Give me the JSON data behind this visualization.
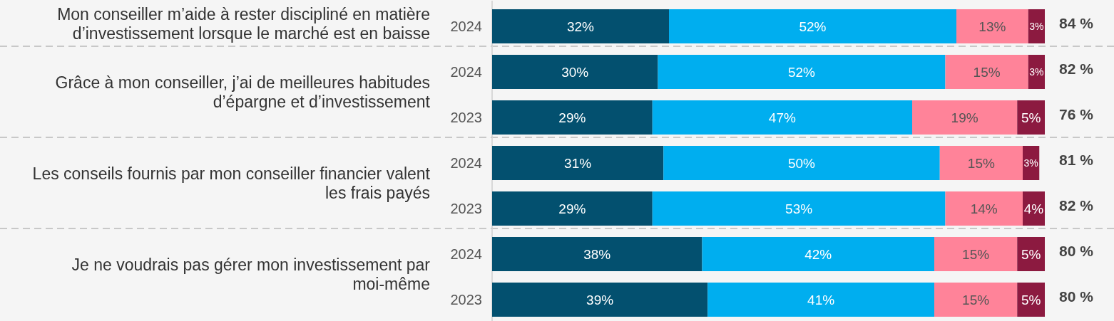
{
  "chart_data": [
    {
      "type": "bar",
      "orientation": "horizontal",
      "stacked": true,
      "title": "Mon conseiller m’aide à rester discipliné en matière d’investissement lorsque le marché est en baisse",
      "categories": [
        "2024"
      ],
      "xlim": [
        0,
        100
      ],
      "tick_labels": "y",
      "annotations": [
        "84 %"
      ],
      "series": [
        {
          "color": "#03506f",
          "values": [
            32
          ],
          "value_labels": [
            "32%"
          ]
        },
        {
          "color": "#00aeef",
          "values": [
            52
          ],
          "value_labels": [
            "52%"
          ]
        },
        {
          "color": "#ff8399",
          "values": [
            13
          ],
          "value_labels": [
            "13%"
          ]
        },
        {
          "color": "#8c1a40",
          "values": [
            3
          ],
          "value_labels": [
            "3%"
          ]
        }
      ]
    },
    {
      "type": "bar",
      "orientation": "horizontal",
      "stacked": true,
      "title": "Grâce à mon conseiller, j’ai de meilleures habitudes d’épargne et d’investissement",
      "categories": [
        "2024",
        "2023"
      ],
      "xlim": [
        0,
        100
      ],
      "tick_labels": "y",
      "annotations": [
        "82 %",
        "76 %"
      ],
      "series": [
        {
          "color": "#03506f",
          "values": [
            30,
            29
          ],
          "value_labels": [
            "30%",
            "29%"
          ]
        },
        {
          "color": "#00aeef",
          "values": [
            52,
            47
          ],
          "value_labels": [
            "52%",
            "47%"
          ]
        },
        {
          "color": "#ff8399",
          "values": [
            15,
            19
          ],
          "value_labels": [
            "15%",
            "19%"
          ]
        },
        {
          "color": "#8c1a40",
          "values": [
            3,
            5
          ],
          "value_labels": [
            "3%",
            "5%"
          ]
        }
      ]
    },
    {
      "type": "bar",
      "orientation": "horizontal",
      "stacked": true,
      "title": "Les conseils fournis par mon conseiller financier valent les frais payés",
      "categories": [
        "2024",
        "2023"
      ],
      "xlim": [
        0,
        100
      ],
      "tick_labels": "y",
      "annotations": [
        "81 %",
        "82 %"
      ],
      "series": [
        {
          "color": "#03506f",
          "values": [
            31,
            29
          ],
          "value_labels": [
            "31%",
            "29%"
          ]
        },
        {
          "color": "#00aeef",
          "values": [
            50,
            53
          ],
          "value_labels": [
            "50%",
            "53%"
          ]
        },
        {
          "color": "#ff8399",
          "values": [
            15,
            14
          ],
          "value_labels": [
            "15%",
            "14%"
          ]
        },
        {
          "color": "#8c1a40",
          "values": [
            3,
            4
          ],
          "value_labels": [
            "3%",
            "4%"
          ]
        }
      ]
    },
    {
      "type": "bar",
      "orientation": "horizontal",
      "stacked": true,
      "title": "Je ne voudrais pas gérer mon investissement par moi-même",
      "categories": [
        "2024",
        "2023"
      ],
      "xlim": [
        0,
        100
      ],
      "tick_labels": "y",
      "annotations": [
        "80 %",
        "80 %"
      ],
      "series": [
        {
          "color": "#03506f",
          "values": [
            38,
            39
          ],
          "value_labels": [
            "38%",
            "39%"
          ]
        },
        {
          "color": "#00aeef",
          "values": [
            42,
            41
          ],
          "value_labels": [
            "42%",
            "41%"
          ]
        },
        {
          "color": "#ff8399",
          "values": [
            15,
            15
          ],
          "value_labels": [
            "15%",
            "15%"
          ]
        },
        {
          "color": "#8c1a40",
          "values": [
            5,
            5
          ],
          "value_labels": [
            "5%",
            "5%"
          ]
        }
      ]
    }
  ]
}
